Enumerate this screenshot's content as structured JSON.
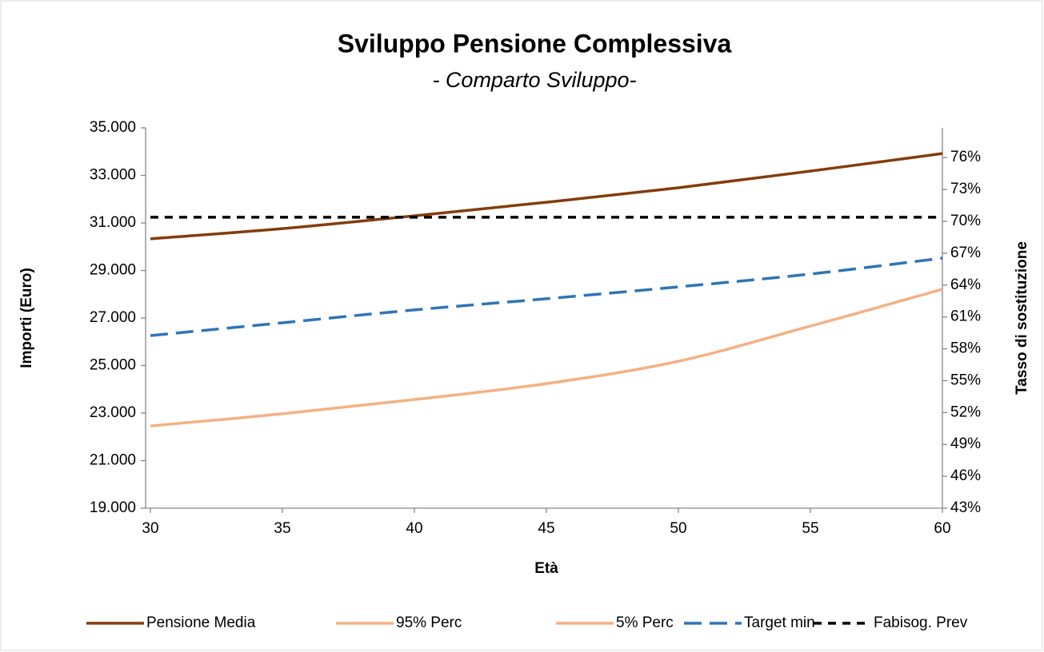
{
  "chart_data": {
    "type": "line",
    "title": "Sviluppo Pensione Complessiva",
    "subtitle": "- Comparto Sviluppo-",
    "x_label": "Età",
    "y_label": "Importi (Euro)",
    "y2_label": "Tasso di sostituzione",
    "x": [
      30,
      35,
      40,
      45,
      50,
      55,
      60
    ],
    "xlim": [
      30,
      60
    ],
    "xticks": [
      30,
      35,
      40,
      45,
      50,
      55,
      60
    ],
    "ylim": [
      19000,
      35000
    ],
    "yticks": [
      {
        "value": 19000,
        "label": "19.000"
      },
      {
        "value": 21000,
        "label": "21.000"
      },
      {
        "value": 23000,
        "label": "23.000"
      },
      {
        "value": 25000,
        "label": "25.000"
      },
      {
        "value": 27000,
        "label": "27.000"
      },
      {
        "value": 29000,
        "label": "29.000"
      },
      {
        "value": 31000,
        "label": "31.000"
      },
      {
        "value": 33000,
        "label": "33.000"
      },
      {
        "value": 35000,
        "label": "35.000"
      }
    ],
    "y2lim": [
      43,
      78.8
    ],
    "y2ticks": [
      {
        "value": 43,
        "label": "43%"
      },
      {
        "value": 46,
        "label": "46%"
      },
      {
        "value": 49,
        "label": "49%"
      },
      {
        "value": 52,
        "label": "52%"
      },
      {
        "value": 55,
        "label": "55%"
      },
      {
        "value": 58,
        "label": "58%"
      },
      {
        "value": 61,
        "label": "61%"
      },
      {
        "value": 64,
        "label": "64%"
      },
      {
        "value": 67,
        "label": "67%"
      },
      {
        "value": 70,
        "label": "70%"
      },
      {
        "value": 73,
        "label": "73%"
      },
      {
        "value": 76,
        "label": "76%"
      }
    ],
    "grid": false,
    "legend": "bottom",
    "series": [
      {
        "name": "Pensione Media",
        "color": "#843c0c",
        "dash": "solid",
        "values": [
          30330,
          30760,
          31300,
          31870,
          32480,
          33180,
          33920
        ]
      },
      {
        "name": "95% Perc",
        "color": "#f4b183",
        "dash": "solid",
        "values": [
          null,
          null,
          null,
          null,
          null,
          null,
          null
        ]
      },
      {
        "name": "5% Perc",
        "color": "#f4b183",
        "dash": "solid",
        "values": [
          22460,
          22970,
          23570,
          24240,
          25180,
          26660,
          28210
        ]
      },
      {
        "name": "Target min",
        "color": "#2e75b6",
        "dash": "long",
        "values": [
          26260,
          26800,
          27340,
          27810,
          28310,
          28850,
          29520
        ]
      },
      {
        "name": "Fabisog. Prev",
        "color": "#000000",
        "dash": "short",
        "values": [
          31240,
          31240,
          31240,
          31240,
          31240,
          31240,
          31240
        ]
      }
    ]
  }
}
